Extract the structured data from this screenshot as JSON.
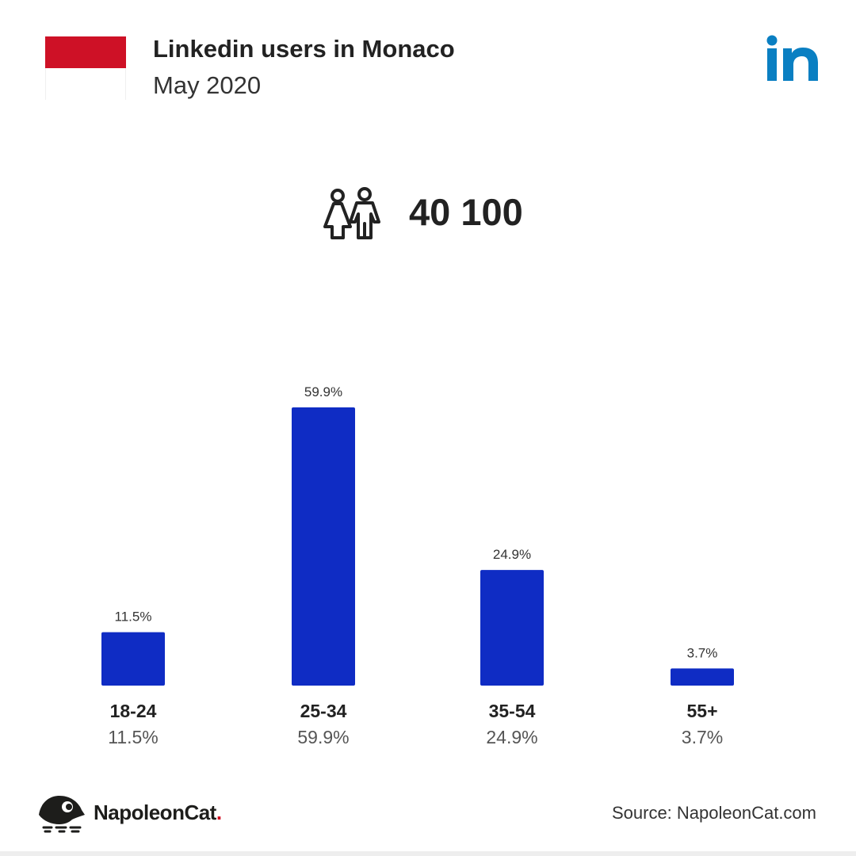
{
  "header": {
    "title": "Linkedin users in Monaco",
    "subtitle": "May 2020"
  },
  "flag": {
    "country": "Monaco",
    "top_color": "#ce1126",
    "bottom_color": "#ffffff"
  },
  "linkedin_logo": {
    "icon": "linkedin-icon",
    "color": "#0a7fc2"
  },
  "total_users": {
    "icon": "users-icon",
    "value": "40 100"
  },
  "chart_data": {
    "type": "bar",
    "categories": [
      "18-24",
      "25-34",
      "35-54",
      "55+"
    ],
    "values": [
      11.5,
      59.9,
      24.9,
      3.7
    ],
    "data_labels": [
      "11.5%",
      "59.9%",
      "24.9%",
      "3.7%"
    ],
    "title": "Linkedin users in Monaco",
    "xlabel": "",
    "ylabel": "",
    "ylim": [
      0,
      59.9
    ],
    "grid": false,
    "bar_color": "#0f2cc4"
  },
  "footer": {
    "brand_name": "NapoleonCat",
    "brand_dot": ".",
    "brand_dot_color": "#d0021b",
    "source": "Source: NapoleonCat.com"
  }
}
